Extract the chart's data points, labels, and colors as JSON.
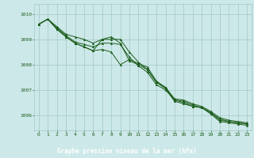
{
  "title": "Graphe pression niveau de la mer (hPa)",
  "bg_plot": "#cde8e8",
  "bg_label": "#2d6e2d",
  "line_color": "#1a5c1a",
  "grid_color": "#a0c8c8",
  "title_color": "#ffffff",
  "tick_color": "#1a5c1a",
  "x_ticks": [
    0,
    1,
    2,
    3,
    4,
    5,
    6,
    7,
    8,
    9,
    10,
    11,
    12,
    13,
    14,
    15,
    16,
    17,
    18,
    19,
    20,
    21,
    22,
    23
  ],
  "y_ticks": [
    1006,
    1007,
    1008,
    1009,
    1010
  ],
  "ylim": [
    1005.4,
    1010.4
  ],
  "xlim": [
    -0.5,
    23.5
  ],
  "series": [
    [
      1009.6,
      1009.8,
      1009.5,
      1009.2,
      1009.1,
      1009.0,
      1008.85,
      1009.0,
      1009.0,
      1009.0,
      1008.5,
      1008.1,
      1007.8,
      1007.3,
      1007.1,
      1006.65,
      1006.6,
      1006.45,
      1006.35,
      1006.15,
      1005.9,
      1005.8,
      1005.75,
      1005.7
    ],
    [
      1009.6,
      1009.8,
      1009.45,
      1009.15,
      1008.9,
      1008.8,
      1008.7,
      1008.85,
      1008.85,
      1008.8,
      1008.3,
      1007.95,
      1007.7,
      1007.2,
      1007.0,
      1006.6,
      1006.55,
      1006.4,
      1006.3,
      1006.1,
      1005.85,
      1005.75,
      1005.7,
      1005.65
    ],
    [
      1009.6,
      1009.8,
      1009.4,
      1009.1,
      1008.85,
      1008.7,
      1008.55,
      1008.6,
      1008.5,
      1008.0,
      1008.2,
      1008.05,
      1007.9,
      1007.35,
      1007.1,
      1006.6,
      1006.5,
      1006.35,
      1006.3,
      1006.1,
      1005.8,
      1005.75,
      1005.7,
      1005.65
    ],
    [
      1009.6,
      1009.8,
      1009.4,
      1009.1,
      1008.85,
      1008.7,
      1008.55,
      1009.0,
      1009.1,
      1008.85,
      1008.15,
      1008.0,
      1007.8,
      1007.3,
      1007.05,
      1006.55,
      1006.45,
      1006.35,
      1006.3,
      1006.05,
      1005.75,
      1005.7,
      1005.65,
      1005.6
    ]
  ]
}
